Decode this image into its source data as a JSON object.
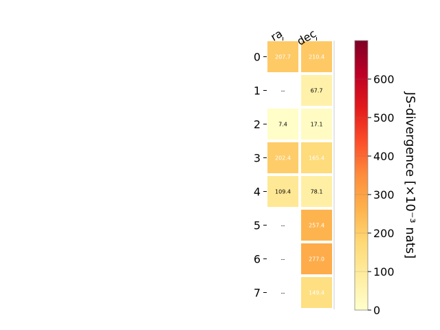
{
  "chart_data": {
    "type": "heatmap",
    "columns": [
      "ra",
      "dec"
    ],
    "rows": [
      "0",
      "1",
      "2",
      "3",
      "4",
      "5",
      "6",
      "7"
    ],
    "values": [
      [
        207.7,
        210.4
      ],
      [
        null,
        67.7
      ],
      [
        7.4,
        17.1
      ],
      [
        202.4,
        165.4
      ],
      [
        109.4,
        78.1
      ],
      [
        null,
        257.4
      ],
      [
        null,
        277.0
      ],
      [
        null,
        149.4
      ]
    ],
    "missing_label": "--",
    "colorbar": {
      "label": "JS-divergence [×10⁻³ nats]",
      "vmin": 0,
      "vmax": 700,
      "ticks": [
        "0",
        "100",
        "200",
        "300",
        "400",
        "500",
        "600"
      ],
      "colormap": "YlOrRd"
    }
  }
}
